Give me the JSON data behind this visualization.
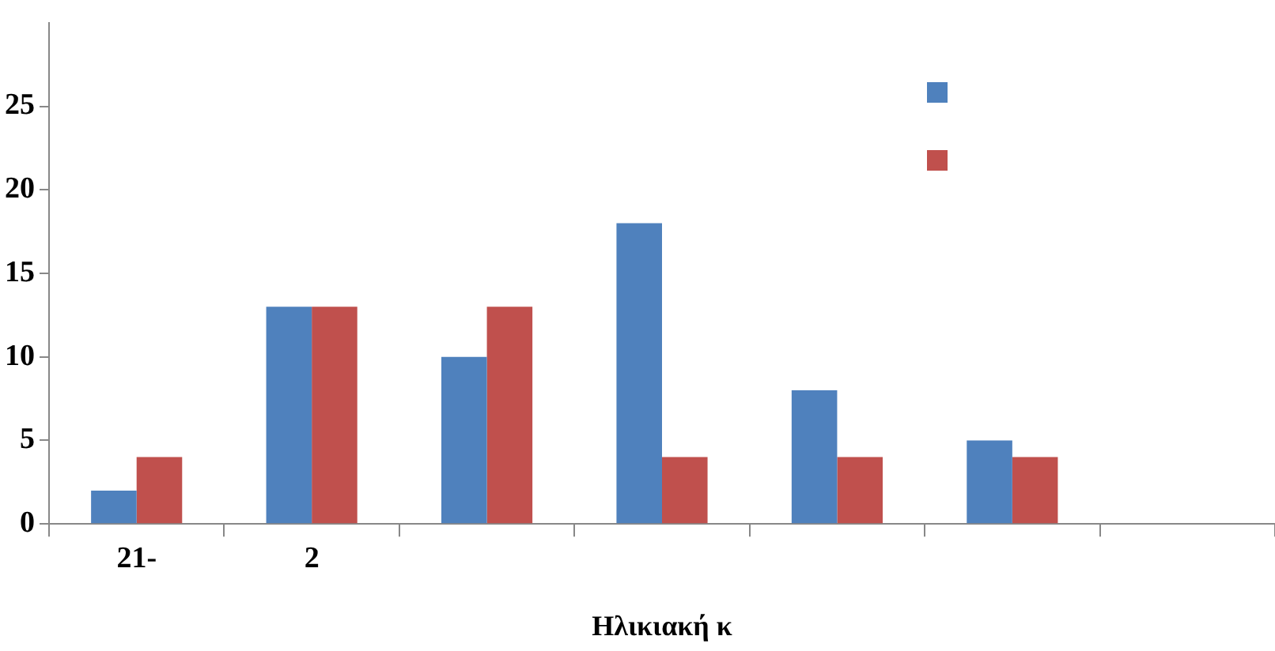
{
  "chart_data": {
    "type": "bar",
    "xlabel": "Ηλικιακή κ",
    "categories": [
      "21-",
      "2",
      null,
      null,
      null,
      null,
      null
    ],
    "series": [
      {
        "color": "#4f81bd",
        "values": [
          2,
          13,
          10,
          18,
          8,
          5,
          null
        ]
      },
      {
        "color": "#c0504d",
        "values": [
          4,
          13,
          13,
          4,
          4,
          4,
          null
        ]
      }
    ],
    "ylim": [
      0,
      30
    ],
    "yticks": [
      0,
      5,
      10,
      15,
      20,
      25
    ],
    "grid": false
  }
}
